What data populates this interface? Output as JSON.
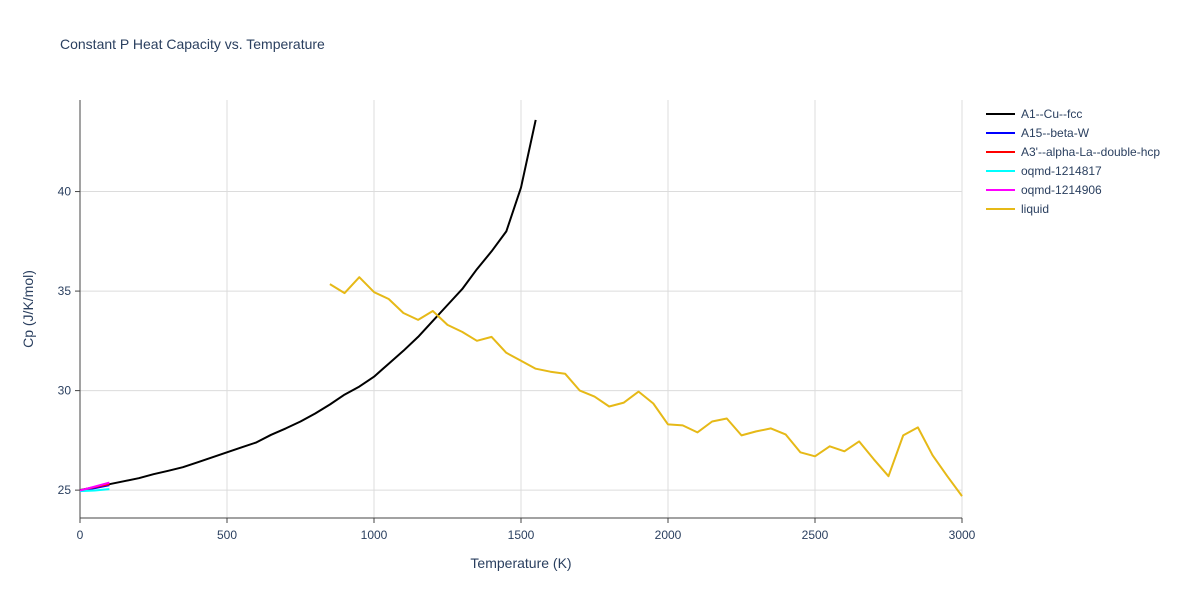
{
  "chart_data": {
    "type": "line",
    "title": "Constant P Heat Capacity vs. Temperature",
    "xlabel": "Temperature (K)",
    "ylabel": "Cp (J/K/mol)",
    "xlim": [
      0,
      3000
    ],
    "ylim": [
      23.6,
      44.6
    ],
    "x_ticks": [
      0,
      500,
      1000,
      1500,
      2000,
      2500,
      3000
    ],
    "y_ticks": [
      25,
      30,
      35,
      40
    ],
    "grid": true,
    "legend_position": "top-right",
    "series": [
      {
        "name": "A1--Cu--fcc",
        "color": "#000000",
        "x": [
          0,
          50,
          100,
          150,
          200,
          250,
          300,
          350,
          400,
          450,
          500,
          550,
          600,
          650,
          700,
          750,
          800,
          850,
          900,
          950,
          1000,
          1050,
          1100,
          1150,
          1200,
          1250,
          1300,
          1350,
          1400,
          1450,
          1500,
          1550
        ],
        "y": [
          25.0,
          25.15,
          25.3,
          25.45,
          25.6,
          25.8,
          25.97,
          26.15,
          26.4,
          26.65,
          26.9,
          27.15,
          27.4,
          27.78,
          28.1,
          28.45,
          28.85,
          29.3,
          29.8,
          30.2,
          30.7,
          31.35,
          32.0,
          32.7,
          33.5,
          34.3,
          35.1,
          36.1,
          37.0,
          38.0,
          40.2,
          43.6
        ]
      },
      {
        "name": "A15--beta-W",
        "color": "#0000ff",
        "x": [
          0,
          50,
          100
        ],
        "y": [
          24.98,
          25.1,
          25.25
        ]
      },
      {
        "name": "A3'--alpha-La--double-hcp",
        "color": "#ff0000",
        "x": [
          0,
          50,
          100
        ],
        "y": [
          24.98,
          25.15,
          25.3
        ]
      },
      {
        "name": "oqmd-1214817",
        "color": "#00ffff",
        "x": [
          0,
          50,
          100
        ],
        "y": [
          24.95,
          24.98,
          25.05
        ]
      },
      {
        "name": "oqmd-1214906",
        "color": "#ff00ff",
        "x": [
          0,
          50,
          100
        ],
        "y": [
          24.98,
          25.18,
          25.38
        ]
      },
      {
        "name": "liquid",
        "color": "#e6b917",
        "x": [
          850,
          900,
          950,
          1000,
          1050,
          1100,
          1150,
          1200,
          1250,
          1300,
          1350,
          1400,
          1450,
          1500,
          1550,
          1600,
          1650,
          1700,
          1750,
          1800,
          1850,
          1900,
          1950,
          2000,
          2050,
          2100,
          2150,
          2200,
          2250,
          2300,
          2350,
          2400,
          2450,
          2500,
          2550,
          2600,
          2650,
          2700,
          2750,
          2800,
          2850,
          2900,
          2950,
          3000
        ],
        "y": [
          35.35,
          34.9,
          35.7,
          34.95,
          34.6,
          33.9,
          33.55,
          34.0,
          33.3,
          32.95,
          32.5,
          32.7,
          31.9,
          31.5,
          31.1,
          30.95,
          30.85,
          30.0,
          29.7,
          29.2,
          29.4,
          29.95,
          29.35,
          28.3,
          28.25,
          27.9,
          28.45,
          28.6,
          27.75,
          27.95,
          28.1,
          27.8,
          26.9,
          26.7,
          27.2,
          26.95,
          27.45,
          26.55,
          25.7,
          27.75,
          28.15,
          26.75,
          25.7,
          24.7
        ]
      }
    ]
  }
}
